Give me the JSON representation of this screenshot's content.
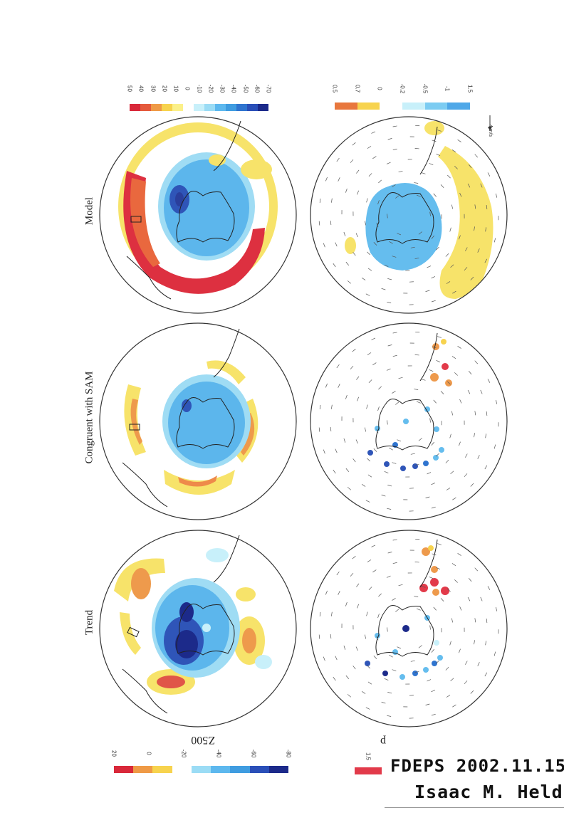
{
  "columns": {
    "model": "Model",
    "sam": "Congruent with SAM",
    "trend": "Trend"
  },
  "row_labels": {
    "z500": "Z500",
    "p": "p"
  },
  "colorbar_top": {
    "ticks": [
      "50",
      "40",
      "30",
      "20",
      "10",
      "0",
      "-10",
      "-20",
      "-30",
      "-40",
      "-50",
      "-60",
      "-70"
    ],
    "colors": [
      "#d9283a",
      "#e55a3c",
      "#ef9a46",
      "#f7d34e",
      "#fbf08a",
      "#ffffff",
      "#c8f0fa",
      "#9bdcf5",
      "#5db8ee",
      "#3f9ce0",
      "#2f74cf",
      "#2a4fb8",
      "#1c2a8a"
    ]
  },
  "colorbar_mid": {
    "ticks": [
      "0.5",
      "0.7",
      "0",
      "-0.2",
      "-0.5",
      "-1",
      "1.5"
    ],
    "colors": [
      "#e8773d",
      "#f7d34e",
      "#ffffff",
      "#c8f0fa",
      "#7cccf2",
      "#4fa8e8"
    ]
  },
  "colorbar_bottom": {
    "ticks": [
      "20",
      "0",
      "-20",
      "-40",
      "-60",
      "-80"
    ],
    "colors": [
      "#d9283a",
      "#ef9a46",
      "#f7d34e",
      "#ffffff",
      "#9bdcf5",
      "#5db8ee",
      "#3f9ce0",
      "#2a4fb8",
      "#1c2a8a"
    ]
  },
  "colorbar_p_small": {
    "ticks": [
      "1.5"
    ],
    "colors": [
      "#e23a4a"
    ]
  },
  "wind_scale": "4 m/s",
  "handwritten": {
    "line1": "FDEPS 2002.11.15",
    "line2": "Isaac M. Held"
  }
}
